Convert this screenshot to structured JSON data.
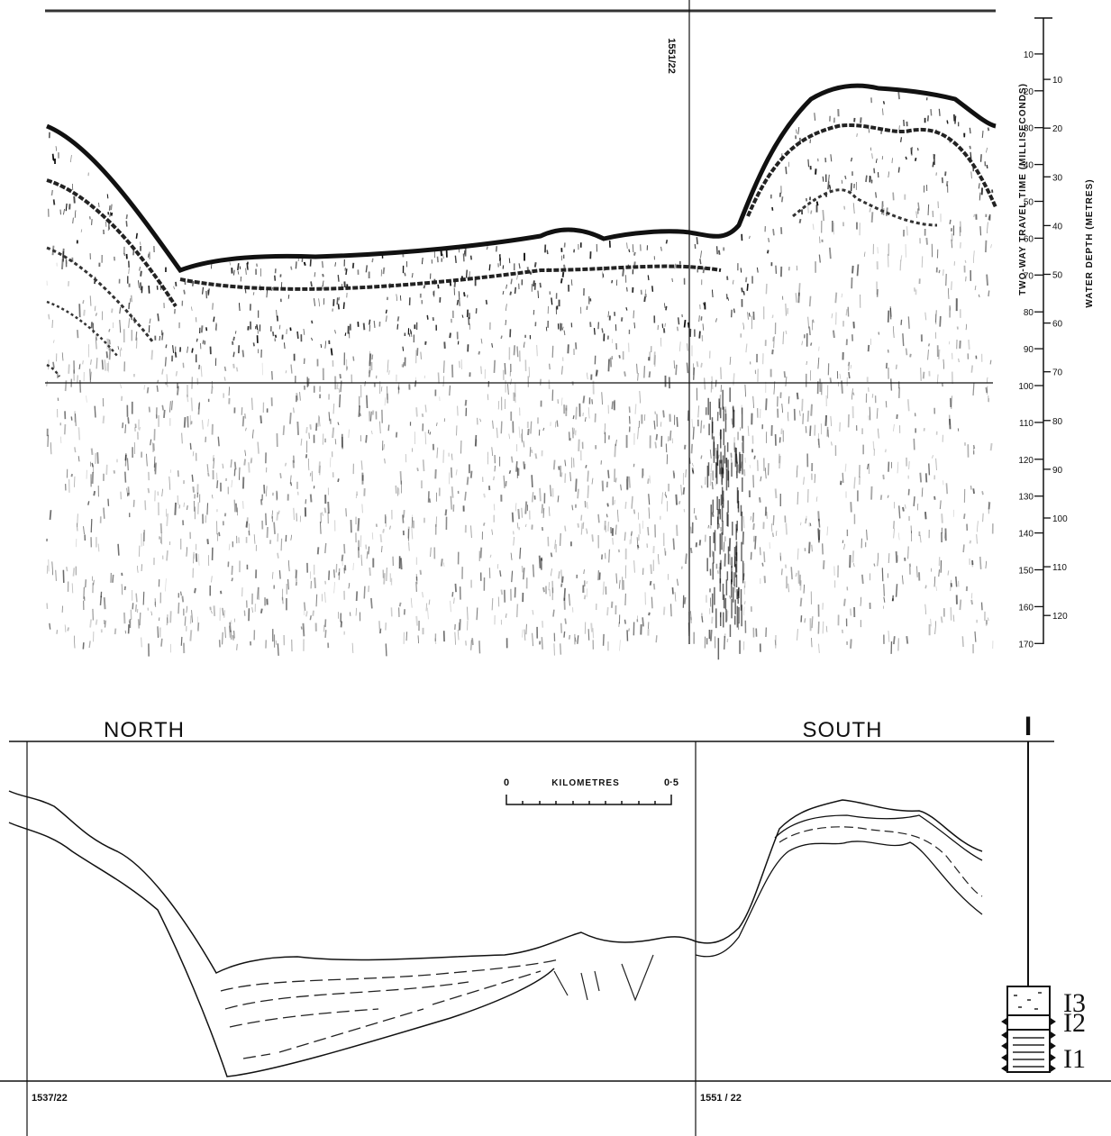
{
  "top_record": {
    "event_mark": "1551/22",
    "travel_time_label": "TWO-WAY TRAVEL TIME (MILLISECONDS)",
    "water_depth_label": "WATER DEPTH (METRES)",
    "travel_time_ticks": [
      10,
      20,
      30,
      40,
      50,
      60,
      70,
      80,
      90,
      100,
      110,
      120,
      130,
      140,
      150,
      160,
      170
    ],
    "depth_ticks": [
      10,
      20,
      30,
      40,
      50,
      60,
      70,
      80,
      90,
      100,
      110,
      120
    ]
  },
  "interpretation": {
    "north": "NORTH",
    "south": "SOUTH",
    "scale": {
      "start": "0",
      "unit": "KILOMETRES",
      "end": "0·5"
    },
    "fixes": [
      "1537/22",
      "1551 / 22"
    ],
    "column": {
      "top": "I",
      "units": [
        "I3",
        "I2",
        "I1"
      ]
    }
  }
}
